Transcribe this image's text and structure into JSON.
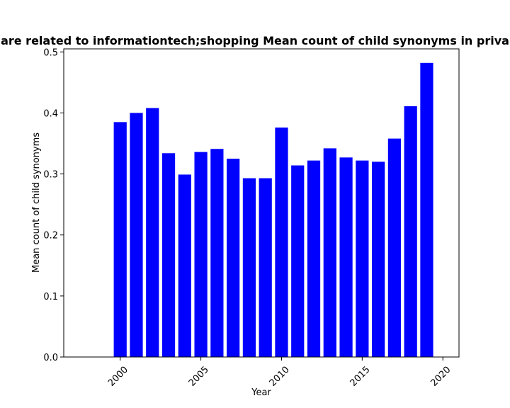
{
  "chart_data": {
    "type": "bar",
    "title": "are related to informationtech;shopping Mean count of child synonyms in priva",
    "xlabel": "Year",
    "ylabel": "Mean count of child synonyms",
    "x": [
      2000,
      2001,
      2002,
      2003,
      2004,
      2005,
      2006,
      2007,
      2008,
      2009,
      2010,
      2011,
      2012,
      2013,
      2014,
      2015,
      2016,
      2017,
      2018,
      2019
    ],
    "values": [
      0.385,
      0.4,
      0.408,
      0.334,
      0.299,
      0.336,
      0.341,
      0.325,
      0.293,
      0.293,
      0.376,
      0.314,
      0.322,
      0.342,
      0.327,
      0.322,
      0.32,
      0.358,
      0.411,
      0.482
    ],
    "xlim": [
      1996.5,
      2021.0
    ],
    "ylim": [
      0,
      0.505
    ],
    "xticks": [
      "2000",
      "2005",
      "2010",
      "2015",
      "2020"
    ],
    "yticks": [
      "0.0",
      "0.1",
      "0.2",
      "0.3",
      "0.4",
      "0.5"
    ],
    "bar_color": "#0000ff",
    "grid": false,
    "legend": "none"
  }
}
